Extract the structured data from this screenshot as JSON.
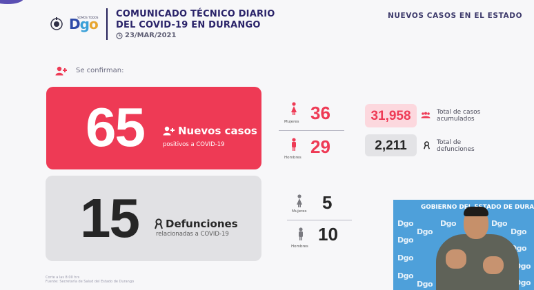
{
  "header": {
    "logo_text": "Dgo",
    "logo_tagline": "SOMOS TODOS",
    "title_line1": "COMUNICADO TÉCNICO DIARIO",
    "title_line2": "DEL COVID-19 EN DURANGO",
    "date": "23/MAR/2021",
    "right_label": "NUEVOS CASOS EN EL ESTADO"
  },
  "confirm_label": "Se confirman:",
  "cases": {
    "count": "65",
    "label": "Nuevos casos",
    "sublabel": "positivos a COVID-19",
    "women_label": "Mujeres",
    "women_count": "36",
    "men_label": "Hombres",
    "men_count": "29"
  },
  "deaths": {
    "count": "15",
    "label": "Defunciones",
    "sublabel": "relacionadas a COVID-19",
    "women_label": "Mujeres",
    "women_count": "5",
    "men_label": "Hombres",
    "men_count": "10"
  },
  "totals": {
    "cases_value": "31,958",
    "cases_label_line1": "Total de casos",
    "cases_label_line2": "acumulados",
    "deaths_value": "2,211",
    "deaths_label_line1": "Total de",
    "deaths_label_line2": "defunciones"
  },
  "footer": {
    "line1": "Corte a las 8:00 hrs",
    "line2": "Fuente: Secretaría de Salud del Estado de Durango"
  },
  "video": {
    "banner": "GOBIERNO DEL ESTADO DE DURANGO",
    "tile_text": "Dgo"
  },
  "colors": {
    "accent_red": "#ee3a55",
    "navy": "#2a2369",
    "gray_card": "#e1e1e4"
  }
}
